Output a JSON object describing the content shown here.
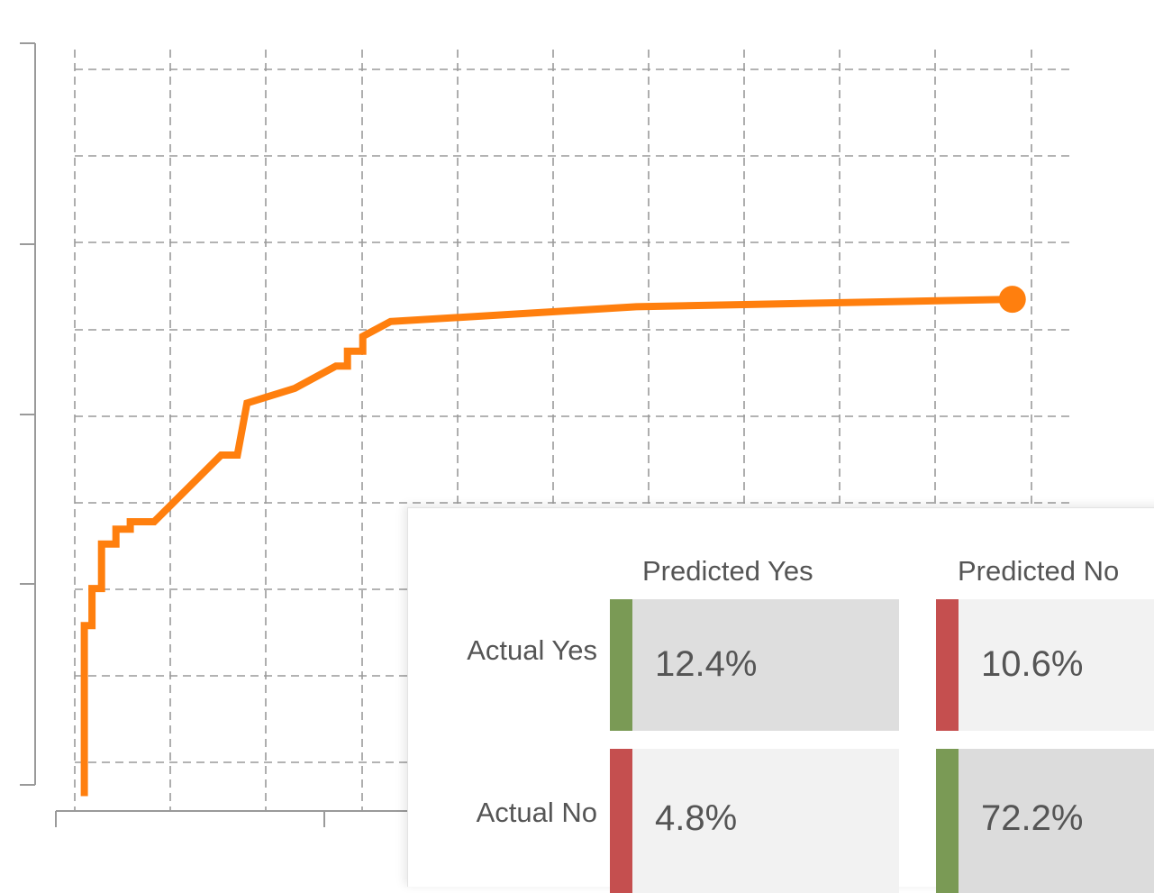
{
  "chart_data": {
    "type": "line",
    "title": "",
    "xlabel": "",
    "ylabel": "",
    "grid": true,
    "x_tick_labels": [],
    "y_tick_labels": [],
    "xlim": [
      0,
      1
    ],
    "ylim": [
      0,
      1
    ],
    "series": [
      {
        "color": "#ff7f0e",
        "end_marker": "circle",
        "x": [
          0.01,
          0.01,
          0.018,
          0.018,
          0.028,
          0.028,
          0.043,
          0.043,
          0.058,
          0.058,
          0.067,
          0.067,
          0.083,
          0.153,
          0.17,
          0.18,
          0.23,
          0.273,
          0.285,
          0.285,
          0.301,
          0.301,
          0.33,
          0.587,
          0.98
        ],
        "y": [
          0.02,
          0.25,
          0.25,
          0.3,
          0.3,
          0.36,
          0.36,
          0.38,
          0.38,
          0.39,
          0.39,
          0.39,
          0.39,
          0.48,
          0.48,
          0.55,
          0.57,
          0.6,
          0.6,
          0.62,
          0.62,
          0.64,
          0.66,
          0.68,
          0.69
        ]
      }
    ]
  },
  "confusion_matrix": {
    "col_headers": [
      "Predicted Yes",
      "Predicted No"
    ],
    "rows": [
      {
        "label": "Actual Yes",
        "cells": [
          {
            "value": "12.4%",
            "status": "correct"
          },
          {
            "value": "10.6%",
            "status": "incorrect"
          }
        ]
      },
      {
        "label": "Actual No",
        "cells": [
          {
            "value": "4.8%",
            "status": "incorrect"
          },
          {
            "value": "72.2%",
            "status": "correct"
          }
        ]
      }
    ],
    "colors": {
      "correct": "#7a9a55",
      "incorrect": "#c54f4f"
    }
  }
}
